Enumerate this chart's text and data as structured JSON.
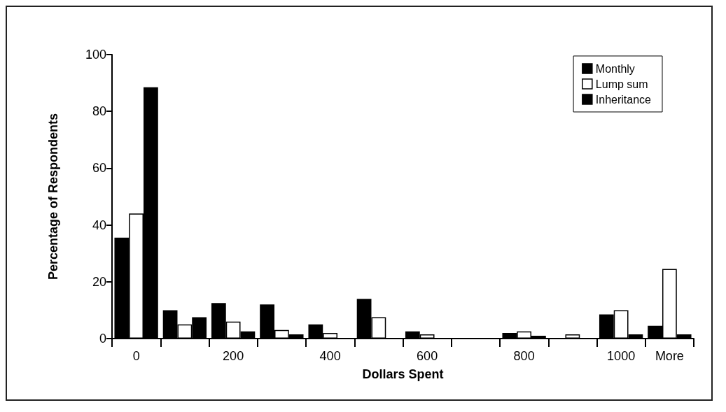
{
  "chart_data": {
    "type": "bar",
    "xlabel": "Dollars Spent",
    "ylabel": "Percentage of Respondents",
    "categories": [
      "0",
      null,
      "200",
      null,
      "400",
      null,
      "600",
      null,
      "800",
      null,
      "1000",
      "More"
    ],
    "series": [
      {
        "name": "Monthly",
        "color": "#000000",
        "values": [
          35.5,
          10,
          12.5,
          12,
          5,
          14,
          2.5,
          0,
          2,
          0,
          8.5,
          4.5
        ]
      },
      {
        "name": "Lump sum",
        "color": "#ffffff",
        "values": [
          44,
          5,
          6,
          3,
          2,
          7.5,
          1.5,
          0,
          2.5,
          1.5,
          10,
          24.5
        ]
      },
      {
        "name": "Inheritance",
        "color": "#000000",
        "values": [
          88.5,
          7.5,
          2.5,
          1.5,
          0,
          0,
          0,
          0,
          1,
          0,
          1.5,
          1.5
        ]
      }
    ],
    "ylim": [
      0,
      100
    ],
    "yticks": [
      0,
      20,
      40,
      60,
      80,
      100
    ],
    "grid": false,
    "legend": "top right"
  }
}
